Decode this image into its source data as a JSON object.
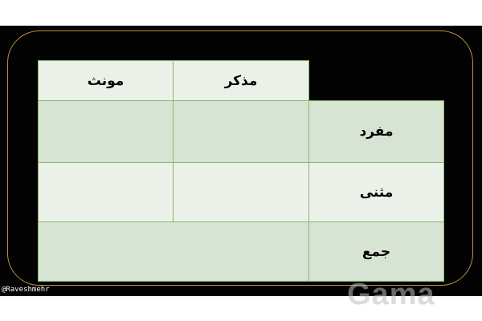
{
  "table": {
    "headers": [
      "مونث",
      "مذکر"
    ],
    "rows": [
      {
        "label": "مفرد",
        "cells": [
          "",
          ""
        ]
      },
      {
        "label": "مثنی",
        "cells": [
          "",
          ""
        ]
      },
      {
        "label": "جمع",
        "cells": [
          ""
        ]
      }
    ]
  },
  "credit": "@Raveshmehr",
  "watermark": "Gama",
  "colors": {
    "background": "#030303",
    "frame": "#b8913e",
    "cell_light": "#ebf1e9",
    "cell_dark": "#d7e4d3",
    "grid": "#8ab36e"
  }
}
